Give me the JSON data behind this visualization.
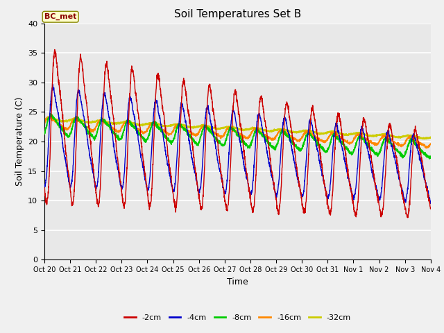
{
  "title": "Soil Temperatures Set B",
  "xlabel": "Time",
  "ylabel": "Soil Temperature (C)",
  "ylim": [
    0,
    40
  ],
  "yticks": [
    0,
    5,
    10,
    15,
    20,
    25,
    30,
    35,
    40
  ],
  "xtick_labels": [
    "Oct 20",
    "Oct 21",
    "Oct 22",
    "Oct 23",
    "Oct 24",
    "Oct 25",
    "Oct 26",
    "Oct 27",
    "Oct 28",
    "Oct 29",
    "Oct 30",
    "Oct 31",
    "Nov 1",
    "Nov 2",
    "Nov 3",
    "Nov 4"
  ],
  "annotation": "BC_met",
  "colors": {
    "-2cm": "#cc0000",
    "-4cm": "#0000cc",
    "-8cm": "#00cc00",
    "-16cm": "#ff8800",
    "-32cm": "#cccc00"
  },
  "legend_labels": [
    "-2cm",
    "-4cm",
    "-8cm",
    "-16cm",
    "-32cm"
  ],
  "bg_color": "#e8e8e8",
  "fig_color": "#f0f0f0",
  "n_days": 15
}
